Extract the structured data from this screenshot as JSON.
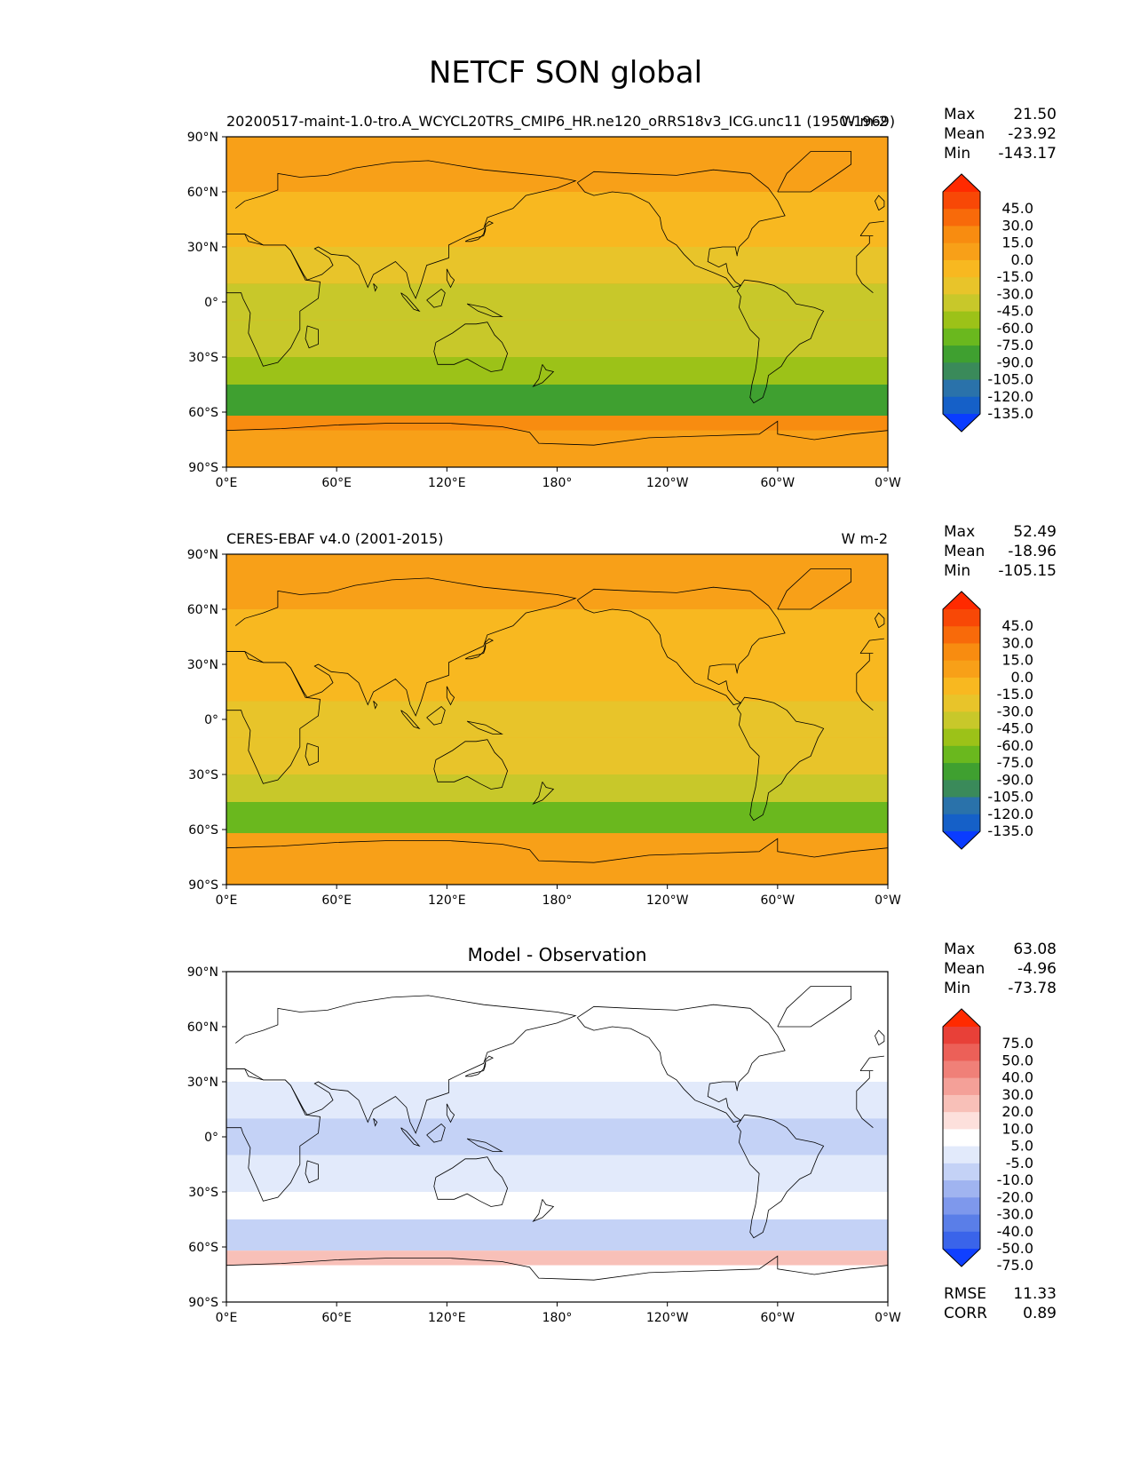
{
  "figure": {
    "title": "NETCF SON global"
  },
  "colors": {
    "test_levels": [
      "#0a3cff",
      "#1560c8",
      "#2a72aa",
      "#3a8a5a",
      "#3fa030",
      "#6ab81e",
      "#9cc218",
      "#c8c82a",
      "#e8c42a",
      "#f8b820",
      "#f8a018",
      "#f88c10",
      "#f86a0a",
      "#f84806",
      "#ff2a00"
    ],
    "diff_levels": [
      "#1040ff",
      "#3a64ea",
      "#5a7ee8",
      "#7e98ec",
      "#a0b4f0",
      "#c4d2f6",
      "#e2eafb",
      "#ffffff",
      "#fde0dc",
      "#f8c0b8",
      "#f4a098",
      "#f08078",
      "#ec6058",
      "#e84038",
      "#ff2a00"
    ],
    "land_outline": "#000000"
  },
  "panels": [
    {
      "id": "test",
      "left_title": "20200517-maint-1.0-tro.A_WCYCL20TRS_CMIP6_HR.ne120_oRRS18v3_ICG.unc11 (1950-1969)",
      "center_title": "",
      "right_title": "W m-2",
      "stats": [
        {
          "label": "Max",
          "value": "21.50"
        },
        {
          "label": "Mean",
          "value": "-23.92"
        },
        {
          "label": "Min",
          "value": "-143.17"
        }
      ],
      "colorbar_labels": [
        "45.0",
        "30.0",
        "15.0",
        "0.0",
        "-15.0",
        "-30.0",
        "-45.0",
        "-60.0",
        "-75.0",
        "-90.0",
        "-105.0",
        "-120.0",
        "-135.0"
      ],
      "extra_stats": []
    },
    {
      "id": "reference",
      "left_title": "CERES-EBAF v4.0 (2001-2015)",
      "center_title": "",
      "right_title": "W m-2",
      "stats": [
        {
          "label": "Max",
          "value": "52.49"
        },
        {
          "label": "Mean",
          "value": "-18.96"
        },
        {
          "label": "Min",
          "value": "-105.15"
        }
      ],
      "colorbar_labels": [
        "45.0",
        "30.0",
        "15.0",
        "0.0",
        "-15.0",
        "-30.0",
        "-45.0",
        "-60.0",
        "-75.0",
        "-90.0",
        "-105.0",
        "-120.0",
        "-135.0"
      ],
      "extra_stats": []
    },
    {
      "id": "difference",
      "left_title": "",
      "center_title": "Model - Observation",
      "right_title": "",
      "stats": [
        {
          "label": "Max",
          "value": "63.08"
        },
        {
          "label": "Mean",
          "value": "-4.96"
        },
        {
          "label": "Min",
          "value": "-73.78"
        }
      ],
      "colorbar_labels": [
        "75.0",
        "50.0",
        "40.0",
        "30.0",
        "20.0",
        "10.0",
        "5.0",
        "-5.0",
        "-10.0",
        "-20.0",
        "-30.0",
        "-40.0",
        "-50.0",
        "-75.0"
      ],
      "extra_stats": [
        {
          "label": "RMSE",
          "value": "11.33"
        },
        {
          "label": "CORR",
          "value": "0.89"
        }
      ]
    }
  ],
  "axes": {
    "lat_ticks": [
      "90°N",
      "60°N",
      "30°N",
      "0°",
      "30°S",
      "60°S",
      "90°S"
    ],
    "lon_ticks": [
      "0°E",
      "60°E",
      "120°E",
      "180°",
      "120°W",
      "60°W",
      "0°W"
    ]
  },
  "chart_data": [
    {
      "type": "heatmap",
      "title": "20200517-maint-1.0-tro.A_WCYCL20TRS_CMIP6_HR.ne120_oRRS18v3_ICG.unc11 (1950-1969)",
      "units": "W m-2",
      "xlabel": "",
      "ylabel": "",
      "xlim": [
        0,
        360
      ],
      "ylim": [
        -90,
        90
      ],
      "levels": [
        -135,
        -120,
        -105,
        -90,
        -75,
        -60,
        -45,
        -30,
        -15,
        0,
        15,
        30,
        45
      ],
      "zonal_bands": [
        {
          "lat": [
            60,
            90
          ],
          "value": 5
        },
        {
          "lat": [
            30,
            60
          ],
          "value": -10
        },
        {
          "lat": [
            10,
            30
          ],
          "value": -20
        },
        {
          "lat": [
            -10,
            10
          ],
          "value": -35
        },
        {
          "lat": [
            -30,
            -10
          ],
          "value": -40
        },
        {
          "lat": [
            -45,
            -30
          ],
          "value": -50
        },
        {
          "lat": [
            -62,
            -45
          ],
          "value": -80
        },
        {
          "lat": [
            -70,
            -62
          ],
          "value": 20
        },
        {
          "lat": [
            -90,
            -70
          ],
          "value": 0
        }
      ],
      "stats": {
        "max": 21.5,
        "mean": -23.92,
        "min": -143.17
      }
    },
    {
      "type": "heatmap",
      "title": "CERES-EBAF v4.0 (2001-2015)",
      "units": "W m-2",
      "xlabel": "",
      "ylabel": "",
      "xlim": [
        0,
        360
      ],
      "ylim": [
        -90,
        90
      ],
      "levels": [
        -135,
        -120,
        -105,
        -90,
        -75,
        -60,
        -45,
        -30,
        -15,
        0,
        15,
        30,
        45
      ],
      "zonal_bands": [
        {
          "lat": [
            60,
            90
          ],
          "value": 10
        },
        {
          "lat": [
            30,
            60
          ],
          "value": -5
        },
        {
          "lat": [
            10,
            30
          ],
          "value": -10
        },
        {
          "lat": [
            -10,
            10
          ],
          "value": -25
        },
        {
          "lat": [
            -30,
            -10
          ],
          "value": -30
        },
        {
          "lat": [
            -45,
            -30
          ],
          "value": -45
        },
        {
          "lat": [
            -62,
            -45
          ],
          "value": -65
        },
        {
          "lat": [
            -70,
            -62
          ],
          "value": 10
        },
        {
          "lat": [
            -90,
            -70
          ],
          "value": 5
        }
      ],
      "stats": {
        "max": 52.49,
        "mean": -18.96,
        "min": -105.15
      }
    },
    {
      "type": "heatmap",
      "title": "Model - Observation",
      "units": "",
      "xlabel": "",
      "ylabel": "",
      "xlim": [
        0,
        360
      ],
      "ylim": [
        -90,
        90
      ],
      "levels": [
        -75,
        -50,
        -40,
        -30,
        -20,
        -10,
        -5,
        5,
        10,
        20,
        30,
        40,
        50,
        75
      ],
      "zonal_bands": [
        {
          "lat": [
            60,
            90
          ],
          "value": -3
        },
        {
          "lat": [
            30,
            60
          ],
          "value": -5
        },
        {
          "lat": [
            10,
            30
          ],
          "value": -10
        },
        {
          "lat": [
            -10,
            10
          ],
          "value": -15
        },
        {
          "lat": [
            -30,
            -10
          ],
          "value": -8
        },
        {
          "lat": [
            -45,
            -30
          ],
          "value": -5
        },
        {
          "lat": [
            -62,
            -45
          ],
          "value": -12
        },
        {
          "lat": [
            -70,
            -62
          ],
          "value": 12
        },
        {
          "lat": [
            -90,
            -70
          ],
          "value": 3
        }
      ],
      "stats": {
        "max": 63.08,
        "mean": -4.96,
        "min": -73.78,
        "rmse": 11.33,
        "corr": 0.89
      }
    }
  ]
}
